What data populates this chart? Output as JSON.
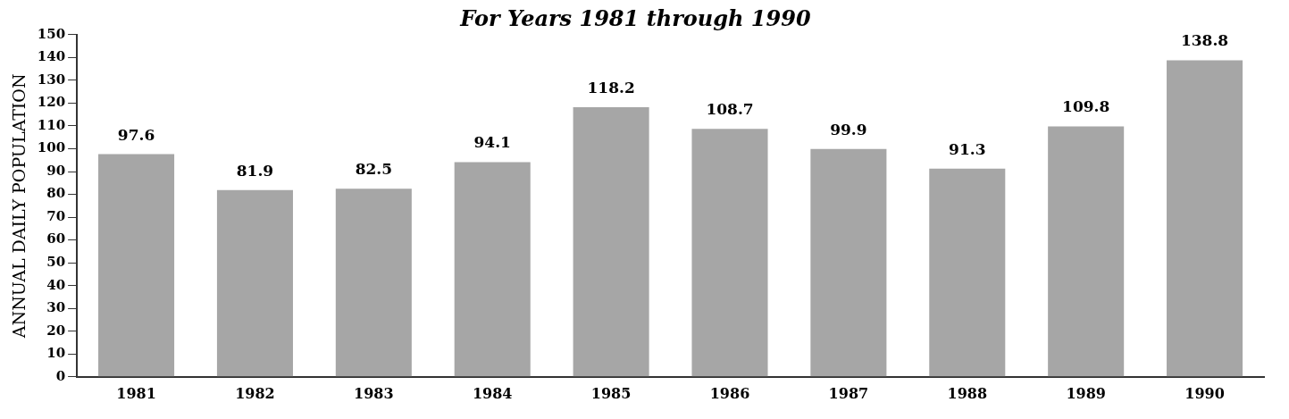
{
  "chart_data": {
    "type": "bar",
    "title": "For Years 1981 through 1990",
    "ylabel": "ANNUAL DAILY POPULATION",
    "categories": [
      "1981",
      "1982",
      "1983",
      "1984",
      "1985",
      "1986",
      "1987",
      "1988",
      "1989",
      "1990"
    ],
    "values": [
      97.6,
      81.9,
      82.5,
      94.1,
      118.2,
      108.7,
      99.9,
      91.3,
      109.8,
      138.8
    ],
    "color": "#a6a6a6",
    "ylim": [
      0,
      150
    ],
    "yticks": [
      0,
      10,
      20,
      30,
      40,
      50,
      60,
      70,
      80,
      90,
      100,
      110,
      120,
      130,
      140,
      150
    ],
    "grid": false,
    "legend": false,
    "data_labels": true
  }
}
